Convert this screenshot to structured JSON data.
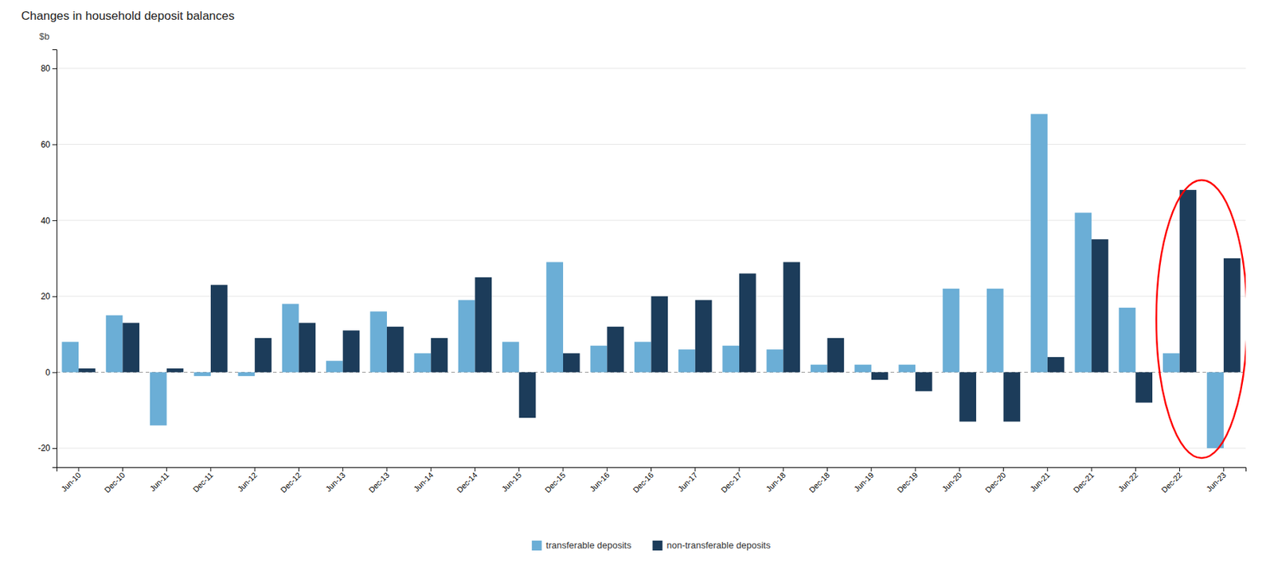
{
  "chart_data": {
    "type": "bar",
    "title": "Changes in household deposit balances",
    "y_label": "$b",
    "categories": [
      "Jun-10",
      "Dec-10",
      "Jun-11",
      "Dec-11",
      "Jun-12",
      "Dec-12",
      "Jun-13",
      "Dec-13",
      "Jun-14",
      "Dec-14",
      "Jun-15",
      "Dec-15",
      "Jun-16",
      "Dec-16",
      "Jun-17",
      "Dec-17",
      "Jun-18",
      "Dec-18",
      "Jun-19",
      "Dec-19",
      "Jun-20",
      "Dec-20",
      "Jun-21",
      "Dec-21",
      "Jun-22",
      "Dec-22",
      "Jun-23"
    ],
    "series": [
      {
        "name": "transferable deposits",
        "color": "#6BAED6",
        "values": [
          8,
          15,
          -14,
          -1,
          -1,
          18,
          3,
          16,
          5,
          19,
          8,
          29,
          7,
          8,
          6,
          7,
          6,
          2,
          2,
          2,
          22,
          22,
          68,
          42,
          17,
          5,
          -20
        ]
      },
      {
        "name": "non-transferable deposits",
        "color": "#1C3C5A",
        "values": [
          1,
          13,
          1,
          23,
          9,
          13,
          11,
          12,
          9,
          25,
          -12,
          5,
          12,
          20,
          19,
          26,
          29,
          9,
          -2,
          -5,
          -13,
          -13,
          4,
          35,
          -8,
          48,
          30
        ]
      }
    ],
    "ylim": [
      -25,
      85
    ],
    "yticks": [
      -20,
      0,
      20,
      40,
      60,
      80
    ],
    "grid": true,
    "legend": "bottom"
  }
}
